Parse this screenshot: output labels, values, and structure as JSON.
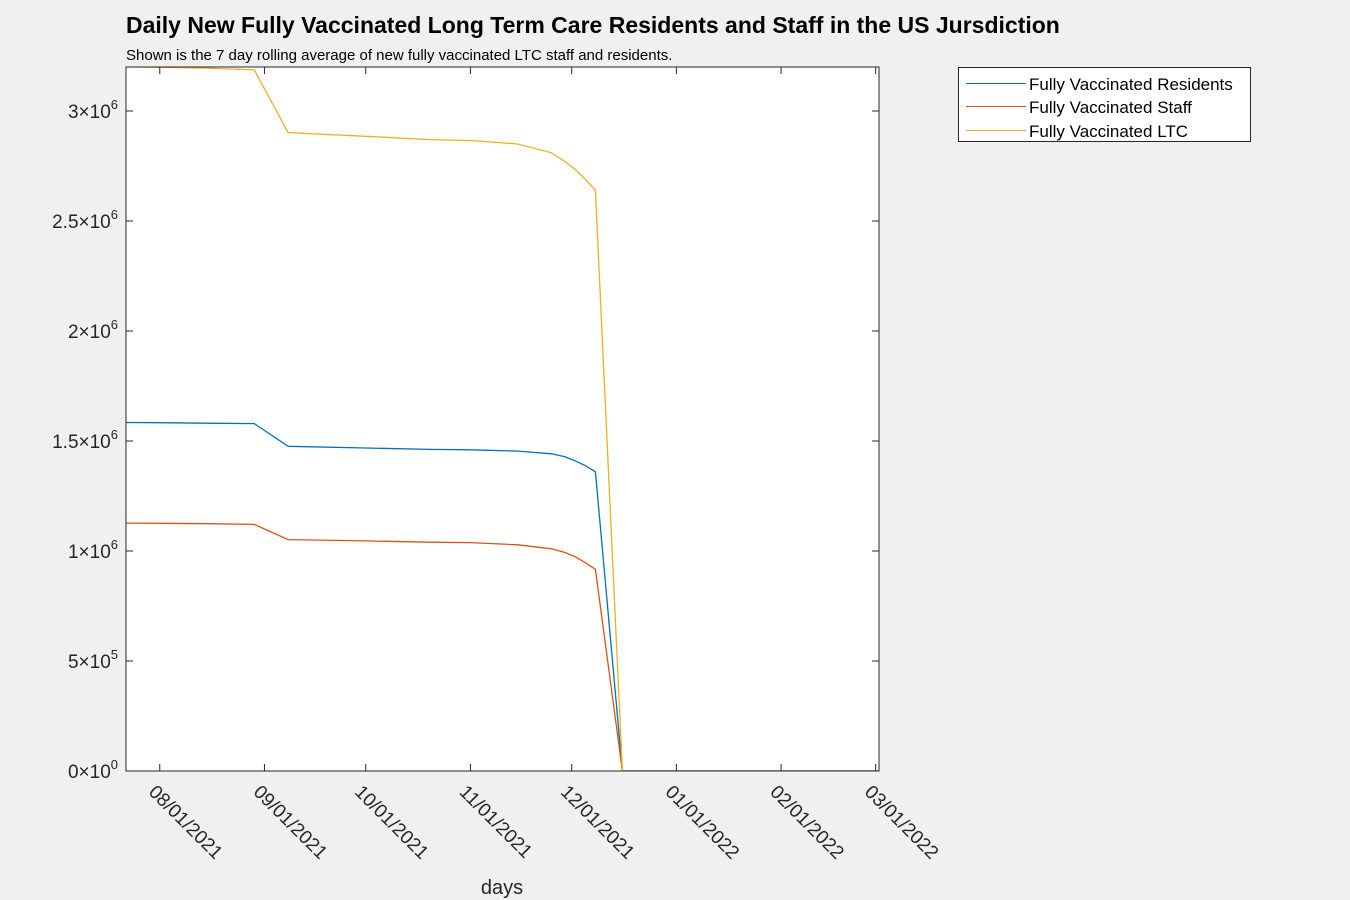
{
  "title": "Daily New Fully Vaccinated Long Term Care Residents and Staff in the US Jursdiction",
  "subtitle": "Shown is the 7 day rolling average of new fully vaccinated LTC staff and residents.",
  "chart_data": {
    "type": "line",
    "title": "Daily New Fully Vaccinated Long Term Care Residents and Staff in the US Jursdiction",
    "subtitle": "Shown is the 7 day rolling average of new fully vaccinated LTC staff and residents.",
    "xlabel": "days",
    "ylabel": "",
    "xlim": [
      "2021-07-22",
      "2022-03-02"
    ],
    "ylim": [
      0,
      3200000
    ],
    "grid": false,
    "legend_position": "outside-top-right",
    "x_ticks": [
      {
        "date": "2021-08-01",
        "label": "08/01/2021"
      },
      {
        "date": "2021-09-01",
        "label": "09/01/2021"
      },
      {
        "date": "2021-10-01",
        "label": "10/01/2021"
      },
      {
        "date": "2021-11-01",
        "label": "11/01/2021"
      },
      {
        "date": "2021-12-01",
        "label": "12/01/2021"
      },
      {
        "date": "2022-01-01",
        "label": "01/01/2022"
      },
      {
        "date": "2022-02-01",
        "label": "02/01/2022"
      },
      {
        "date": "2022-03-01",
        "label": "03/01/2022"
      }
    ],
    "y_ticks": [
      {
        "value": 0,
        "mantissa": "0",
        "exponent": "0"
      },
      {
        "value": 500000,
        "mantissa": "5",
        "exponent": "5"
      },
      {
        "value": 1000000,
        "mantissa": "1",
        "exponent": "6"
      },
      {
        "value": 1500000,
        "mantissa": "1.5",
        "exponent": "6"
      },
      {
        "value": 2000000,
        "mantissa": "2",
        "exponent": "6"
      },
      {
        "value": 2500000,
        "mantissa": "2.5",
        "exponent": "6"
      },
      {
        "value": 3000000,
        "mantissa": "3",
        "exponent": "6"
      }
    ],
    "series": [
      {
        "name": "Fully Vaccinated Residents",
        "color": "#0072BD",
        "x": [
          "2021-07-22",
          "2021-08-01",
          "2021-08-15",
          "2021-08-29",
          "2021-09-08",
          "2021-10-01",
          "2021-10-20",
          "2021-11-01",
          "2021-11-15",
          "2021-11-25",
          "2021-11-29",
          "2021-12-02",
          "2021-12-05",
          "2021-12-08",
          "2021-12-16",
          "2022-01-01",
          "2022-02-01",
          "2022-03-02"
        ],
        "values": [
          1584000,
          1583000,
          1581000,
          1579000,
          1476000,
          1468000,
          1462000,
          1460000,
          1454000,
          1442000,
          1428000,
          1410000,
          1388000,
          1360000,
          0,
          0,
          0,
          0
        ]
      },
      {
        "name": "Fully Vaccinated Staff",
        "color": "#D95319",
        "x": [
          "2021-07-22",
          "2021-08-01",
          "2021-08-15",
          "2021-08-29",
          "2021-09-08",
          "2021-10-01",
          "2021-10-20",
          "2021-11-01",
          "2021-11-15",
          "2021-11-25",
          "2021-11-29",
          "2021-12-02",
          "2021-12-05",
          "2021-12-08",
          "2021-12-16",
          "2022-01-01",
          "2022-02-01",
          "2022-03-02"
        ],
        "values": [
          1127000,
          1126000,
          1124000,
          1121000,
          1052000,
          1046000,
          1040000,
          1038000,
          1028000,
          1010000,
          993000,
          974000,
          947000,
          917000,
          0,
          0,
          0,
          0
        ]
      },
      {
        "name": "Fully Vaccinated LTC",
        "color": "#EDB120",
        "x": [
          "2021-07-22",
          "2021-08-01",
          "2021-08-15",
          "2021-08-29",
          "2021-09-08",
          "2021-10-01",
          "2021-10-20",
          "2021-11-01",
          "2021-11-15",
          "2021-11-25",
          "2021-11-29",
          "2021-12-02",
          "2021-12-05",
          "2021-12-08",
          "2021-12-16",
          "2022-01-01",
          "2022-02-01",
          "2022-03-02"
        ],
        "values": [
          3201000,
          3199000,
          3195000,
          3187000,
          2902000,
          2885000,
          2870000,
          2866000,
          2850000,
          2810000,
          2770000,
          2735000,
          2690000,
          2640000,
          0,
          0,
          0,
          0
        ]
      }
    ]
  }
}
